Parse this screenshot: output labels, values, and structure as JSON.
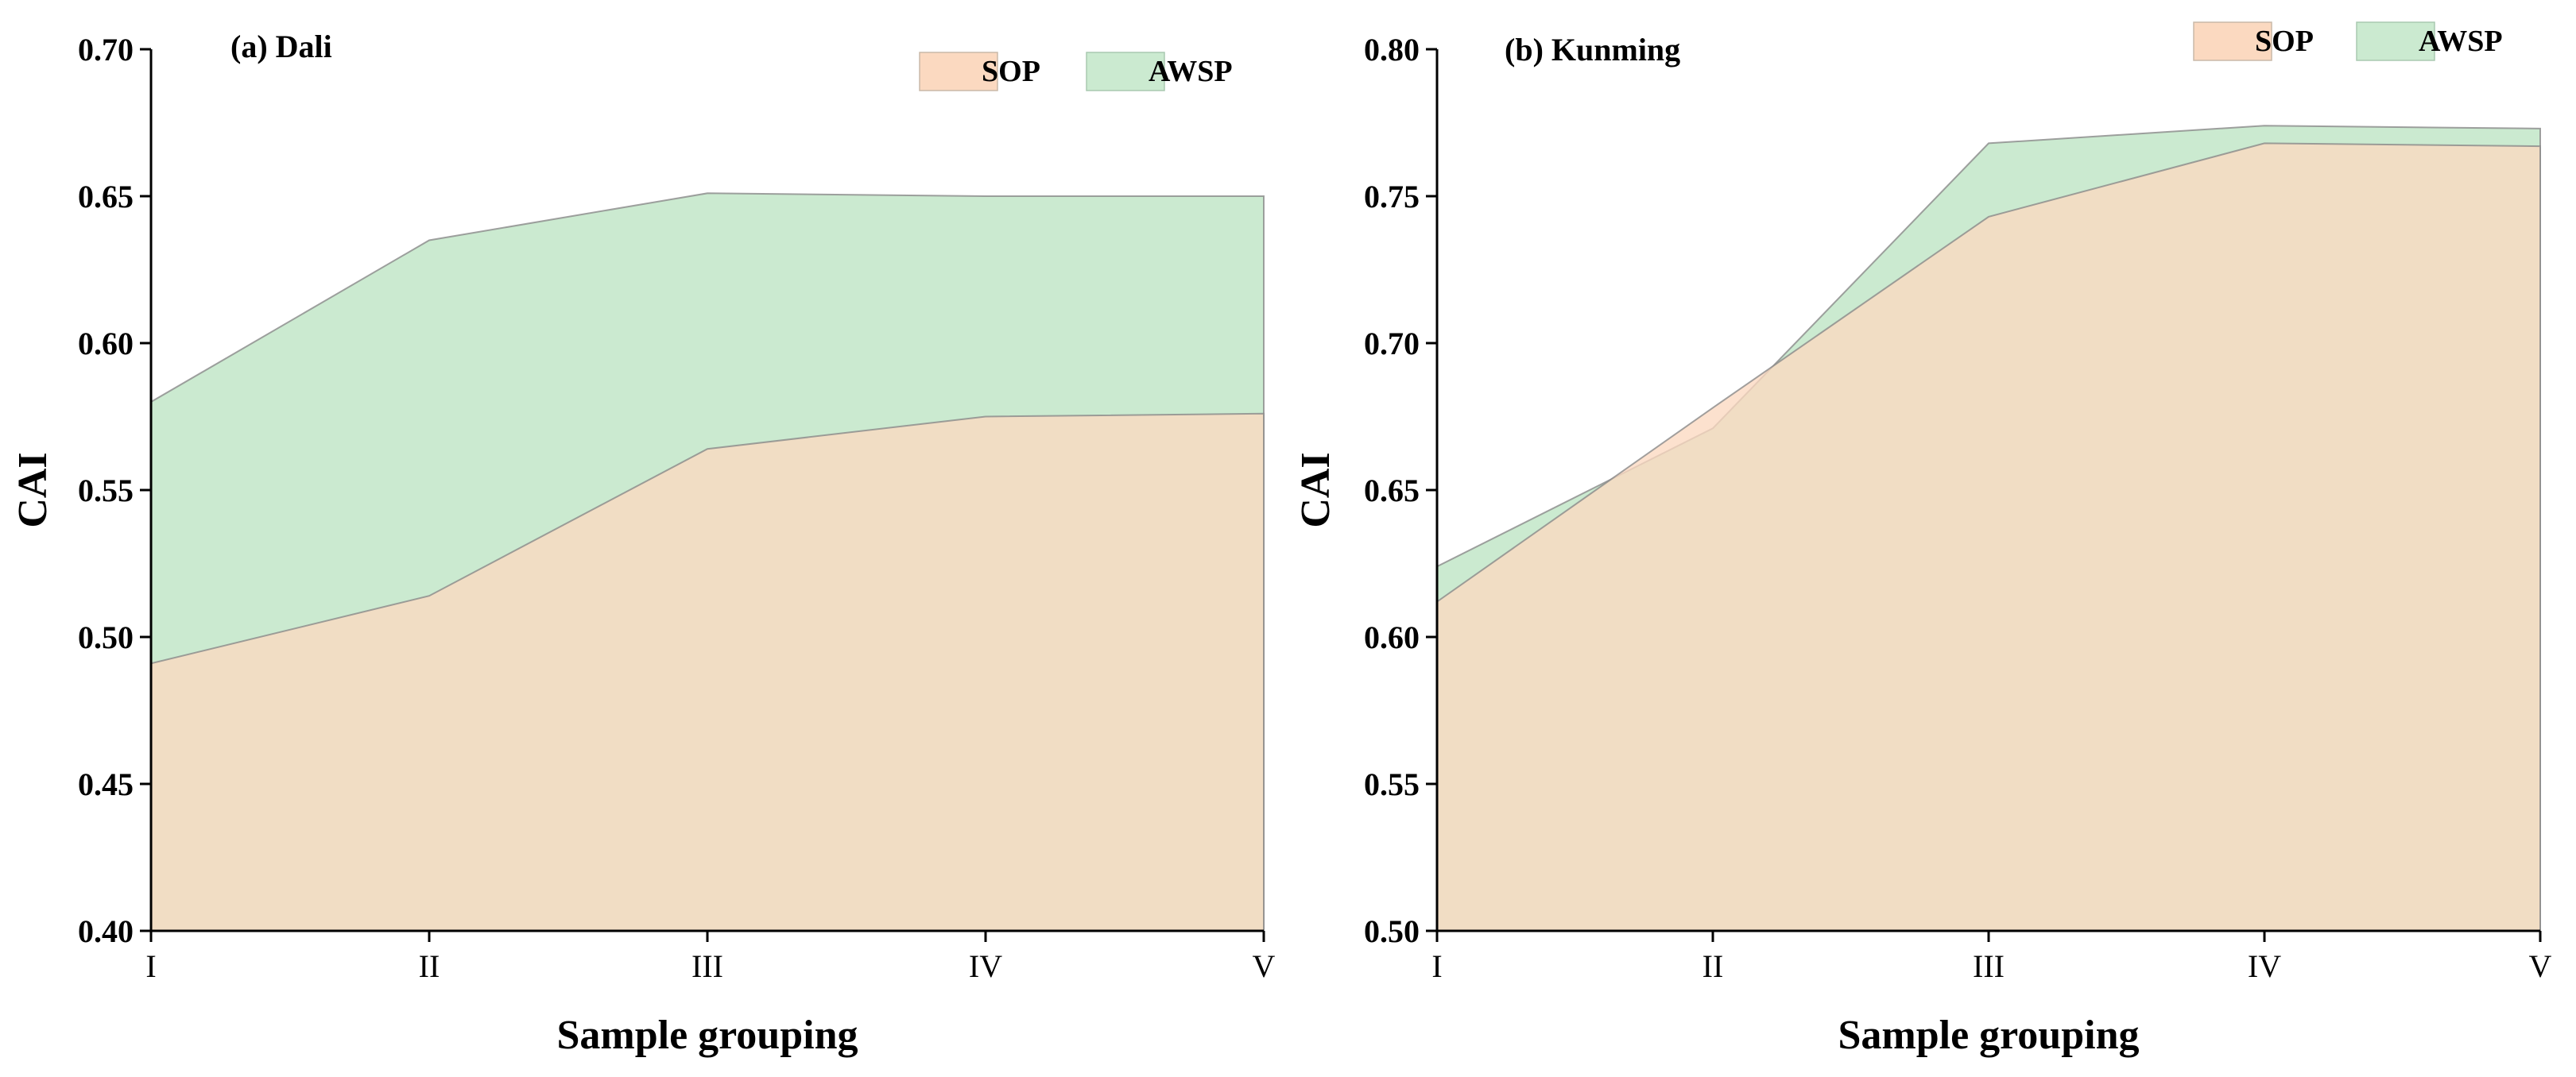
{
  "chart_data": [
    {
      "type": "area",
      "title": "(a) Dali",
      "xlabel": "Sample grouping",
      "ylabel": "CAI",
      "categories": [
        "I",
        "II",
        "III",
        "IV",
        "V"
      ],
      "ylim": [
        0.4,
        0.7
      ],
      "yticks": [
        "0.40",
        "0.45",
        "0.50",
        "0.55",
        "0.60",
        "0.65",
        "0.70"
      ],
      "legend_position": "top-right",
      "grid": false,
      "series": [
        {
          "name": "SOP",
          "values": [
            0.491,
            0.514,
            0.564,
            0.575,
            0.576
          ],
          "color": "#fbd9c0"
        },
        {
          "name": "AWSP",
          "values": [
            0.58,
            0.635,
            0.651,
            0.65,
            0.65
          ],
          "color": "#cbead0"
        }
      ]
    },
    {
      "type": "area",
      "title": "(b) Kunming",
      "xlabel": "Sample grouping",
      "ylabel": "CAI",
      "categories": [
        "I",
        "II",
        "III",
        "IV",
        "V"
      ],
      "ylim": [
        0.5,
        0.8
      ],
      "yticks": [
        "0.50",
        "0.55",
        "0.60",
        "0.65",
        "0.70",
        "0.75",
        "0.80"
      ],
      "legend_position": "top-right",
      "grid": false,
      "series": [
        {
          "name": "SOP",
          "values": [
            0.612,
            0.678,
            0.743,
            0.768,
            0.767
          ],
          "color": "#fbd9c0"
        },
        {
          "name": "AWSP",
          "values": [
            0.624,
            0.671,
            0.768,
            0.774,
            0.773
          ],
          "color": "#cbead0"
        }
      ]
    }
  ]
}
